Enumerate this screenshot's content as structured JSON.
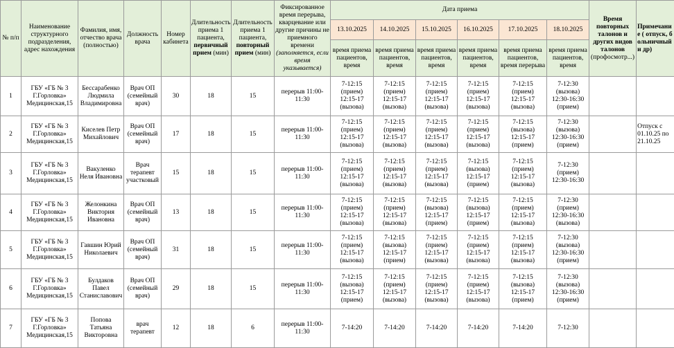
{
  "header": {
    "columns": [
      [
        {
          "text": "№ п/п"
        }
      ],
      [
        {
          "text": "Наименование структурного подразделения, адрес нахождения"
        }
      ],
      [
        {
          "text": "Фамилия, имя, отчество врача (полностью)"
        }
      ],
      [
        {
          "text": "Должность врача"
        }
      ],
      [
        {
          "text": "Номер кабинета"
        }
      ],
      [
        {
          "text": "Длительность приема 1 пациента,"
        },
        {
          "text": "первичный прием",
          "bold": true
        },
        {
          "text": "(мин)"
        }
      ],
      [
        {
          "text": "Длительность приема 1 пациента,"
        },
        {
          "text": "повторный прием",
          "bold": true
        },
        {
          "text": "(мин)"
        }
      ],
      [
        {
          "text": "Фиксированное время перерыва, кварцевание или другие причины не приемного времени"
        },
        {
          "text": "(заполняется, если время указывается)",
          "italic": true
        }
      ]
    ],
    "date_group": "Дата приема",
    "dates": [
      "13.10.2025",
      "14.10.2025",
      "15.10.2025",
      "16.10.2025",
      "17.10.2025",
      "18.10.2025"
    ],
    "date_subheaders": [
      "время приема пациентов, время",
      "время приема пациентов, время",
      "время приема пациентов, время",
      "время приема пациентов, время",
      "время приема пациентов, время перерыва",
      "время приема пациентов, время"
    ],
    "repeat_tickets": [
      {
        "text": "Время повторных талонов и других видов талонов",
        "bold": true
      },
      {
        "text": "(профосмотр...)"
      }
    ],
    "notes": [
      {
        "text": "Примечание ( отпуск, больничный и др)",
        "bold": true
      }
    ]
  },
  "rows": [
    {
      "num": "1",
      "unit": "ГБУ «ГБ № 3 Г.Горловка» Медицинская,15",
      "name": "Бессарабенко Людмила Владимировна",
      "position": "Врач ОП (семейный врач)",
      "room": "30",
      "primary": "18",
      "repeat": "15",
      "break": "перерыв 11:00-11:30",
      "days": [
        [
          "7-12:15",
          "(прием)",
          "12:15-17",
          "(вызова)"
        ],
        [
          "7-12:15",
          "(прием)",
          "12:15-17",
          "(вызова)"
        ],
        [
          "7-12:15",
          "(прием)",
          "12:15-17",
          "(вызова)"
        ],
        [
          "7-12:15",
          "(прием)",
          "12:15-17",
          "(вызова)"
        ],
        [
          "7-12:15",
          "(прием)",
          "12:15-17",
          "(вызова)"
        ],
        [
          "7-12:30",
          "(вызова)",
          "12:30-16:30",
          "(прием)"
        ]
      ]
    },
    {
      "num": "2",
      "unit": "ГБУ «ГБ № 3 Г.Горловка» Медицинская,15",
      "name": "Киселев Петр Михайлович",
      "position": "Врач ОП (семейный врач)",
      "room": "17",
      "primary": "18",
      "repeat": "15",
      "break": "перерыв 11:00-11:30",
      "days": [
        [
          "7-12:15",
          "(прием)",
          "12:15-17",
          "(вызова)"
        ],
        [
          "7-12:15",
          "(прием)",
          "12:15-17",
          "(вызова)"
        ],
        [
          "7-12:15",
          "(прием)",
          "12:15-17",
          "(вызова)"
        ],
        [
          "7-12:15",
          "(прием)",
          "12:15-17",
          "(вызова)"
        ],
        [
          "7-12:15",
          "(вызова)",
          "12:15-17",
          "(прием)"
        ],
        [
          "7-12:30",
          "(вызова)",
          "12:30-16:30",
          "(прием)"
        ]
      ],
      "notes": "Отпуск с 01.10.25 по 21.10.25"
    },
    {
      "num": "3",
      "unit": "ГБУ «ГБ № 3 Г.Горловка» Медицинская,15",
      "name": "Вакуленко Неля Ивановна",
      "position": "Врач терапевт участковый",
      "room": "15",
      "primary": "18",
      "repeat": "15",
      "break": "перерыв 11:00-11:30",
      "days": [
        [
          "7-12:15",
          "(прием)",
          "12:15-17",
          "(вызова)"
        ],
        [
          "7-12:15",
          "(прием)",
          "12:15-17",
          "(вызова)"
        ],
        [
          "7-12:15",
          "(прием)",
          "12:15-17",
          "(вызова)"
        ],
        [
          "7-12:15",
          "(вызова)",
          "12:15-17",
          "(прием)"
        ],
        [
          "7-12:15",
          "(прием)",
          "12:15-17",
          "(вызова)"
        ],
        [
          "7-12:30",
          "(прием)",
          "12:30-16:30"
        ]
      ]
    },
    {
      "num": "4",
      "unit": "ГБУ «ГБ № 3 Г.Горловка» Медицинская,15",
      "name": "Желонкина Виктория Ивановна",
      "position": "Врач ОП (семейный врач)",
      "room": "13",
      "primary": "18",
      "repeat": "15",
      "break": "перерыв 11:00-11:30",
      "days": [
        [
          "7-12:15",
          "(прием)",
          "12:15-17",
          "(вызова)"
        ],
        [
          "7-12:15",
          "(прием)",
          "12:15-17",
          "(вызова)"
        ],
        [
          "7-12:15",
          "(вызова)",
          "12:15-17",
          "(прием)"
        ],
        [
          "7-12:15",
          "(вызова)",
          "12:15-17",
          "(прием)"
        ],
        [
          "7-12:15",
          "(прием)",
          "12:15-17",
          "(вызова)"
        ],
        [
          "7-12:30",
          "(прием)",
          "12:30-16:30",
          "(вызова)"
        ]
      ]
    },
    {
      "num": "5",
      "unit": "ГБУ «ГБ № 3 Г.Горловка» Медицинская,15",
      "name": "Гавшин Юрий Николаевич",
      "position": "Врач ОП (семейный врач)",
      "room": "31",
      "primary": "18",
      "repeat": "15",
      "break": "перерыв 11:00-11:30",
      "days": [
        [
          "7-12:15",
          "(прием)",
          "12:15-17",
          "(вызова)"
        ],
        [
          "7-12:15",
          "(вызова)",
          "12:15-17",
          "(прием)"
        ],
        [
          "7-12:15",
          "(прием)",
          "12:15-17",
          "(вызова)"
        ],
        [
          "7-12:15",
          "(прием)",
          "12:15-17",
          "(вызова)"
        ],
        [
          "7-12:15",
          "(прием)",
          "12:15-17",
          "(вызова)"
        ],
        [
          "7-12:30",
          "(вызова)",
          "12:30-16:30",
          "(прием)"
        ]
      ]
    },
    {
      "num": "6",
      "unit": "ГБУ «ГБ № 3 Г.Горловка» Медицинская,15",
      "name": "Булдаков Павел Станиславович",
      "position": "Врач ОП (семейный врач)",
      "room": "29",
      "primary": "18",
      "repeat": "15",
      "break": "перерыв 11:00-11:30",
      "days": [
        [
          "7-12:15",
          "(вызова)",
          "12:15-17",
          "(прием)"
        ],
        [
          "7-12:15",
          "(прием)",
          "12:15-17",
          "(вызова)"
        ],
        [
          "7-12:15",
          "(прием)",
          "12:15-17",
          "(вызова)"
        ],
        [
          "7-12:15",
          "(прием)",
          "12:15-17",
          "(вызова)"
        ],
        [
          "7-12:15",
          "(вызова)",
          "12:15-17",
          "(прием)"
        ],
        [
          "7-12:30",
          "(вызова)",
          "12:30-16:30",
          "(прием)"
        ]
      ]
    },
    {
      "num": "7",
      "unit": "ГБУ «ГБ № 3 Г.Горловка» Медицинская,15",
      "name": "Попова Татьяна Викторовна",
      "position": "врач терапевт",
      "room": "12",
      "primary": "18",
      "repeat": "6",
      "break": "перерыв 11:00-11:30",
      "days": [
        [
          "7-14:20"
        ],
        [
          "7-14:20"
        ],
        [
          "7-14:20"
        ],
        [
          "7-14:20"
        ],
        [
          "7-14:20"
        ],
        [
          "7-12:30"
        ]
      ]
    }
  ]
}
